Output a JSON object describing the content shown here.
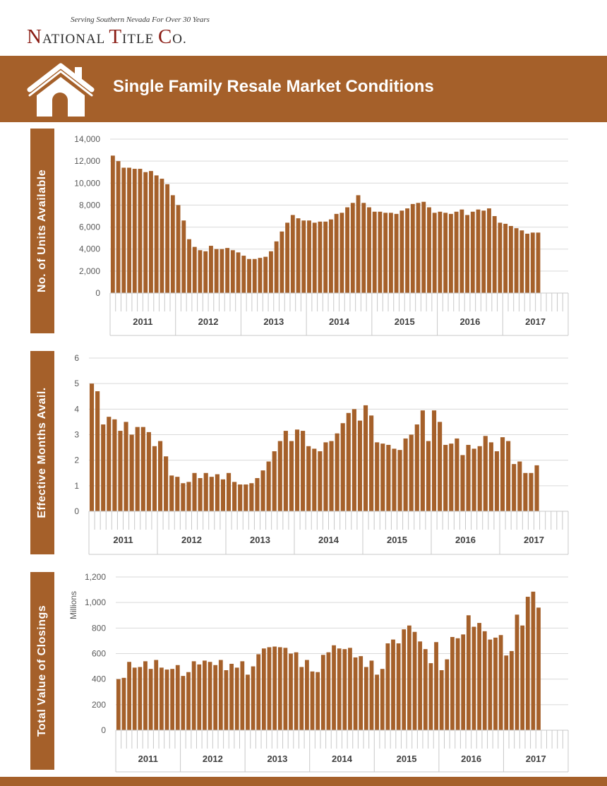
{
  "header": {
    "tagline": "Serving Southern Nevada For Over 30 Years",
    "brand_parts": [
      "N",
      "ATIONAL ",
      "T",
      "ITLE ",
      "C",
      "O."
    ],
    "title": "Single Family Resale Market Conditions"
  },
  "colors": {
    "brand": "#a5602a",
    "bar": "#a5602a",
    "grid": "#d9d9d9",
    "logo_accent": "#8a1c14"
  },
  "icons": {
    "house": "house-icon"
  },
  "chart_data": [
    {
      "type": "bar",
      "label": "No. of Units Available",
      "ylabel": "",
      "ylim": [
        0,
        14000
      ],
      "yticks": [
        "0",
        "2,000",
        "4,000",
        "6,000",
        "8,000",
        "10,000",
        "12,000",
        "14,000"
      ],
      "year_labels": [
        "2011",
        "2012",
        "2013",
        "2014",
        "2015",
        "2016",
        "2017"
      ],
      "values": [
        12500,
        12000,
        11400,
        11400,
        11300,
        11300,
        11000,
        11100,
        10700,
        10400,
        9900,
        8900,
        8000,
        6600,
        4900,
        4200,
        3900,
        3800,
        4300,
        4000,
        4000,
        4100,
        3900,
        3700,
        3400,
        3100,
        3100,
        3200,
        3300,
        3800,
        4700,
        5600,
        6400,
        7100,
        6800,
        6600,
        6600,
        6400,
        6500,
        6500,
        6700,
        7200,
        7300,
        7800,
        8200,
        8900,
        8200,
        7800,
        7400,
        7400,
        7300,
        7300,
        7200,
        7500,
        7700,
        8100,
        8200,
        8300,
        7800,
        7300,
        7400,
        7300,
        7200,
        7400,
        7600,
        7100,
        7400,
        7600,
        7500,
        7700,
        7000,
        6400,
        6300,
        6100,
        5900,
        5700,
        5400,
        5500,
        5500
      ]
    },
    {
      "type": "bar",
      "label": "Effective Months Avail.",
      "ylabel": "",
      "ylim": [
        0,
        6
      ],
      "yticks": [
        "0",
        "1",
        "2",
        "3",
        "4",
        "5",
        "6"
      ],
      "year_labels": [
        "2011",
        "2012",
        "2013",
        "2014",
        "2015",
        "2016",
        "2017"
      ],
      "values": [
        5.0,
        4.7,
        3.4,
        3.7,
        3.6,
        3.15,
        3.5,
        3.0,
        3.3,
        3.3,
        3.1,
        2.55,
        2.75,
        2.15,
        1.4,
        1.35,
        1.1,
        1.15,
        1.5,
        1.3,
        1.5,
        1.35,
        1.45,
        1.25,
        1.5,
        1.15,
        1.05,
        1.05,
        1.1,
        1.3,
        1.6,
        1.95,
        2.35,
        2.75,
        3.15,
        2.75,
        3.2,
        3.15,
        2.55,
        2.45,
        2.35,
        2.7,
        2.75,
        3.05,
        3.45,
        3.85,
        4.0,
        3.55,
        4.15,
        3.75,
        2.7,
        2.65,
        2.6,
        2.45,
        2.4,
        2.85,
        3.0,
        3.4,
        3.95,
        2.75,
        3.95,
        3.5,
        2.6,
        2.65,
        2.85,
        2.2,
        2.6,
        2.45,
        2.55,
        2.95,
        2.7,
        2.35,
        2.9,
        2.75,
        1.85,
        1.95,
        1.5,
        1.5,
        1.8
      ]
    },
    {
      "type": "bar",
      "label": "Total Value of Closings",
      "ylabel": "Millions",
      "ylim": [
        0,
        1200
      ],
      "yticks": [
        "0",
        "200",
        "400",
        "600",
        "800",
        "1,000",
        "1,200"
      ],
      "year_labels": [
        "2011",
        "2012",
        "2013",
        "2014",
        "2015",
        "2016",
        "2017"
      ],
      "values": [
        400,
        410,
        535,
        490,
        495,
        540,
        480,
        550,
        490,
        475,
        480,
        510,
        425,
        455,
        540,
        515,
        545,
        535,
        510,
        550,
        470,
        520,
        490,
        540,
        435,
        500,
        595,
        640,
        650,
        655,
        650,
        645,
        600,
        610,
        495,
        550,
        460,
        455,
        590,
        610,
        665,
        640,
        635,
        645,
        570,
        580,
        495,
        545,
        435,
        480,
        680,
        710,
        680,
        790,
        820,
        770,
        695,
        635,
        525,
        690,
        470,
        555,
        730,
        720,
        750,
        900,
        810,
        840,
        775,
        710,
        725,
        745,
        585,
        620,
        905,
        820,
        1045,
        1085,
        960
      ]
    }
  ]
}
